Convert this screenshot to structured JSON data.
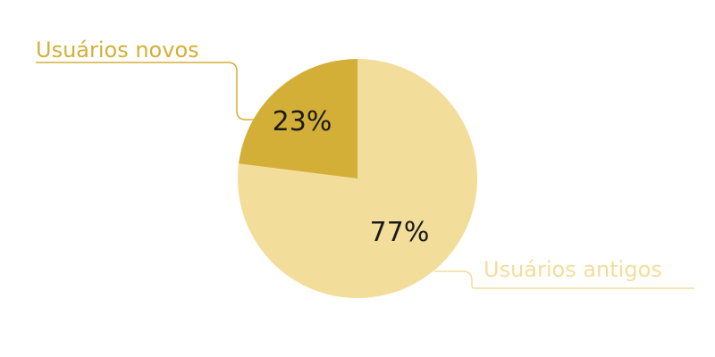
{
  "chart_data": {
    "type": "pie",
    "title": "",
    "categories": [
      "Usuários antigos",
      "Usuários novos"
    ],
    "values": [
      77,
      23
    ],
    "value_labels": [
      "77%",
      "23%"
    ],
    "colors": [
      "#f3dd9b",
      "#d4af37"
    ],
    "label_colors": [
      "#f3dd9b",
      "#d4af37"
    ],
    "legend": "none",
    "start": "top",
    "direction": "clockwise"
  }
}
